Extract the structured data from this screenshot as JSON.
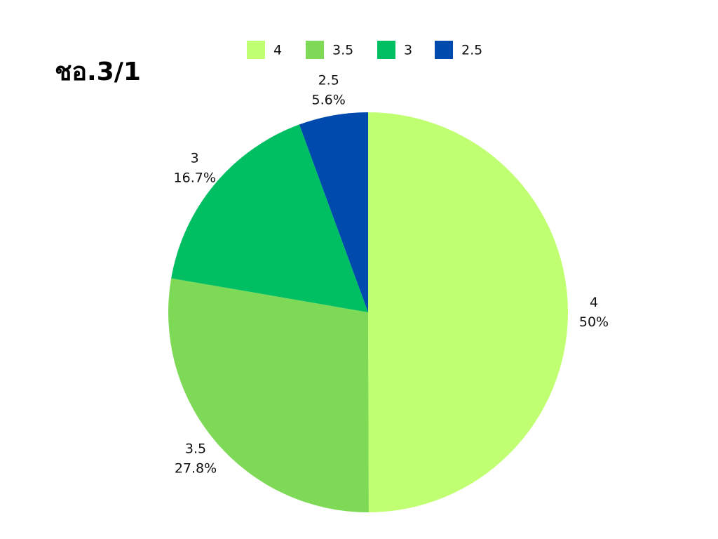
{
  "chart_data": {
    "type": "pie",
    "title": "ชอ.3/1",
    "categories": [
      "4",
      "3.5",
      "3",
      "2.5"
    ],
    "values": [
      50,
      27.8,
      16.7,
      5.6
    ],
    "value_labels": [
      "50%",
      "27.8%",
      "16.7%",
      "5.6%"
    ],
    "colors": [
      "#c1ff72",
      "#7ed957",
      "#00bf63",
      "#004aad"
    ],
    "legend": "top"
  }
}
